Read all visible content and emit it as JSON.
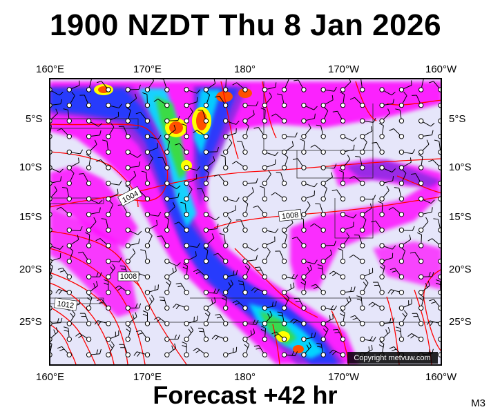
{
  "title": "1900 NZDT Thu 8 Jan 2026",
  "footer": "Forecast +42 hr",
  "model_code": "M3",
  "copyright": "Copyright metvuw.com",
  "top_lon_labels": [
    "160°E",
    "170°E",
    "180°",
    "170°W",
    "160°W"
  ],
  "bottom_lon_labels": [
    "160°E",
    "170°E",
    "180°",
    "170°W",
    "160°W"
  ],
  "left_lat_labels": [
    "5°S",
    "10°S",
    "15°S",
    "20°S",
    "25°S"
  ],
  "right_lat_labels": [
    "5°S",
    "10°S",
    "15°S",
    "20°S",
    "25°S"
  ],
  "isobar_labels": [
    "1004",
    "1008",
    "1008",
    "1012"
  ],
  "colors": {
    "background": "#e6e6fa",
    "rain_magenta": "#ff00ff",
    "rain_purple": "#8a2be2",
    "rain_blue": "#1e3cff",
    "rain_cyan": "#00e5ff",
    "rain_green": "#3cdc3c",
    "rain_yellow": "#ffff00",
    "rain_orange": "#ff5000",
    "isobar": "#ff0000"
  }
}
